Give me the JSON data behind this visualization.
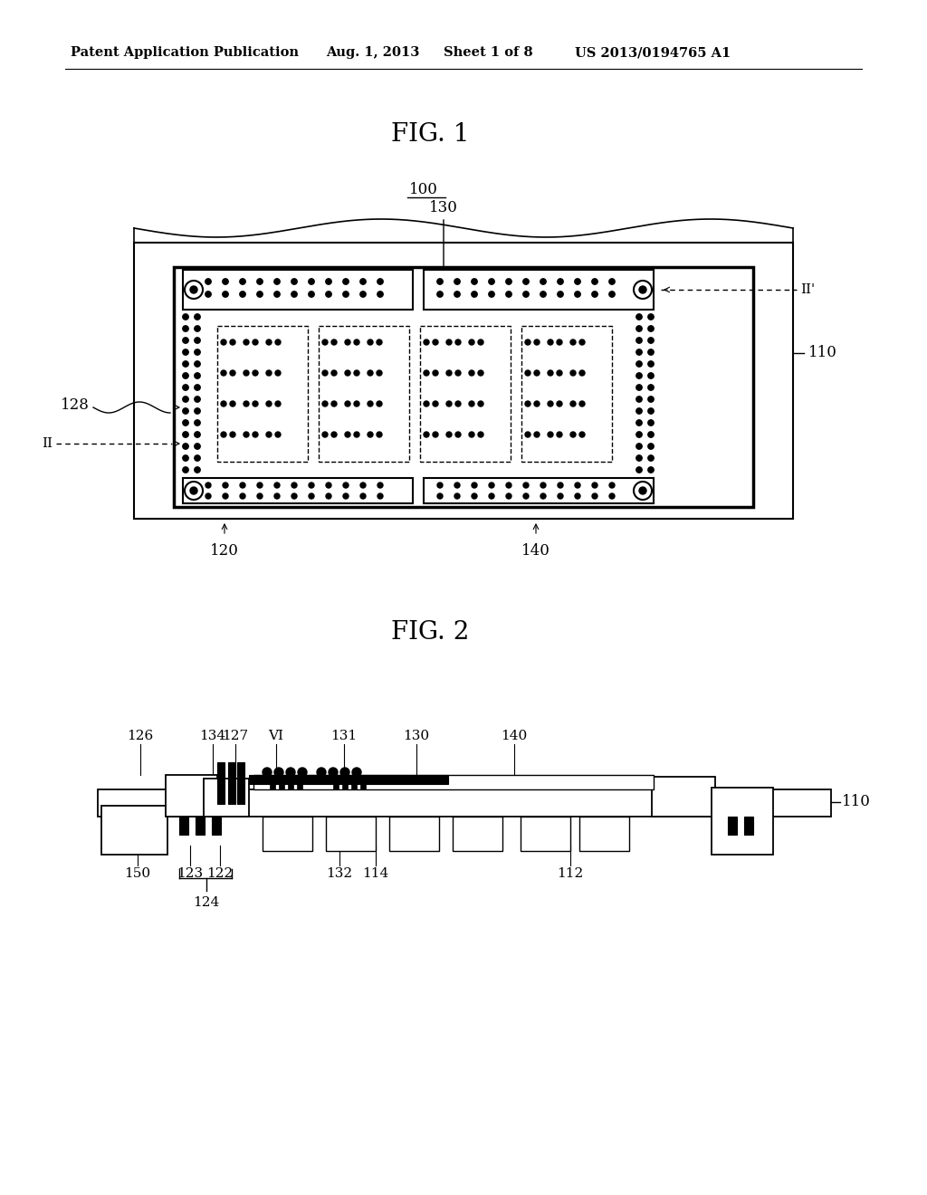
{
  "bg_color": "#ffffff",
  "header_left": "Patent Application Publication",
  "header_date": "Aug. 1, 2013",
  "header_sheet": "Sheet 1 of 8",
  "header_patent": "US 2013/0194765 A1",
  "fig1_title": "FIG. 1",
  "fig2_title": "FIG. 2"
}
